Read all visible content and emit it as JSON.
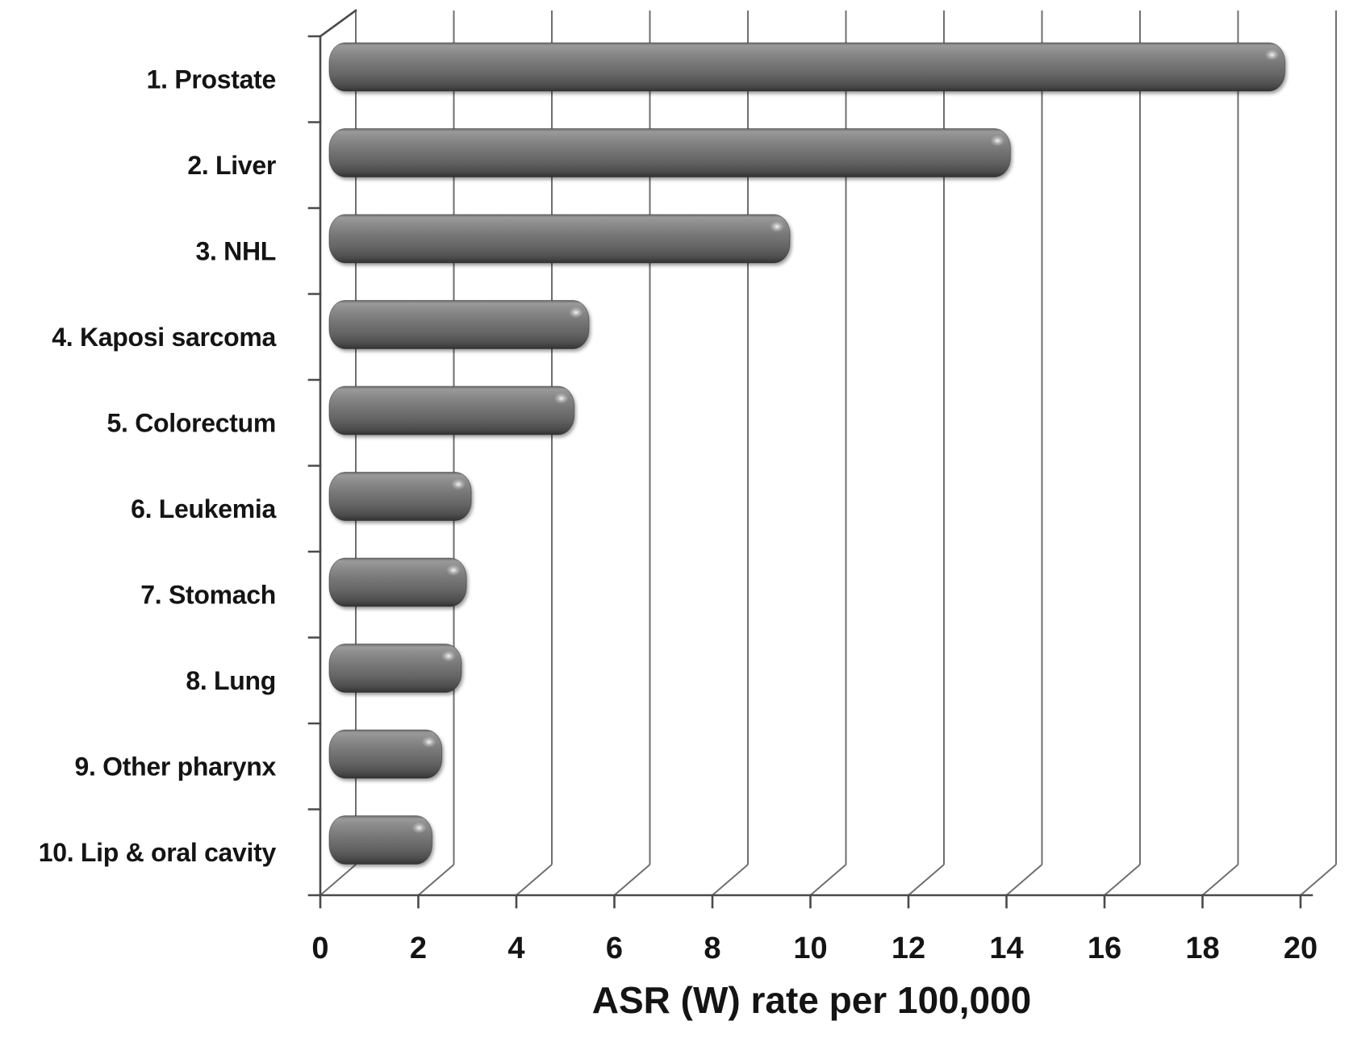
{
  "chart_data": {
    "type": "bar",
    "orientation": "horizontal",
    "style": "3d-rounded-excel",
    "title": "",
    "xlabel": "ASR (W) rate per 100,000",
    "ylabel": "",
    "categories": [
      "1. Prostate",
      "2. Liver",
      "3. NHL",
      "4. Kaposi sarcoma",
      "5. Colorectum",
      "6. Leukemia",
      "7. Stomach",
      "8. Lung",
      "9. Other pharynx",
      "10. Lip & oral cavity"
    ],
    "values": [
      19.5,
      13.9,
      9.4,
      5.3,
      5.0,
      2.9,
      2.8,
      2.7,
      2.3,
      2.1
    ],
    "xlim": [
      0,
      20
    ],
    "xtick_step": 2,
    "xtick_labels": [
      "0",
      "2",
      "4",
      "6",
      "8",
      "10",
      "12",
      "14",
      "16",
      "18",
      "20"
    ],
    "grid": true,
    "legend": "none",
    "colors": {
      "background": "#ffffff",
      "bar_base": "#757575",
      "bar_light": "#9a9a9a",
      "bar_dark": "#3b3b3b",
      "gridline": "#6f6f6f",
      "axis": "#4a4a4a",
      "text": "#141414"
    }
  }
}
